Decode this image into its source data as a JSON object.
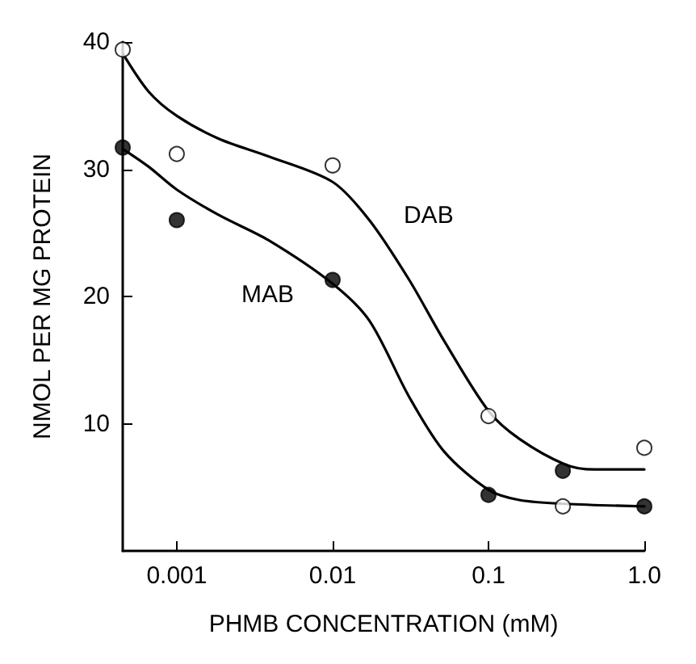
{
  "chart_data": {
    "type": "scatter",
    "xlabel": "PHMB CONCENTRATION (mM)",
    "ylabel": "NMOL PER MG PROTEIN",
    "log": "x",
    "grid": false,
    "marker": "circle",
    "xlim": [
      0.00045,
      1
    ],
    "xticks": [
      0.001,
      0.01,
      0.1,
      {
        "value": 1,
        "label": "1.0"
      }
    ],
    "ylim": [
      0,
      40
    ],
    "yticks": [
      10,
      20,
      30,
      40
    ],
    "series": [
      {
        "type": "line",
        "name": "DAB",
        "marker": "none",
        "color": "#000000",
        "x": [
          0.00045,
          0.00066,
          0.001,
          0.00186,
          0.0039,
          0.01,
          0.0172,
          0.031,
          0.052,
          0.1,
          0.158,
          0.31,
          0.48,
          1
        ],
        "values": [
          39.1,
          36.1,
          34.2,
          32.4,
          31.0,
          29.0,
          26.0,
          21.3,
          16.5,
          11.0,
          8.8,
          6.8,
          6.4,
          6.4
        ]
      },
      {
        "type": "line",
        "name": "MAB",
        "marker": "none",
        "color": "#000000",
        "x": [
          0.00045,
          0.00066,
          0.001,
          0.00186,
          0.0039,
          0.01,
          0.0172,
          0.031,
          0.052,
          0.1,
          0.158,
          0.31,
          1
        ],
        "values": [
          31.6,
          30.2,
          28.4,
          26.4,
          24.4,
          21.0,
          18.1,
          12.1,
          7.8,
          4.8,
          4.0,
          3.7,
          3.5
        ]
      },
      {
        "color": "#ffffff",
        "x": [
          0.00045,
          0.001,
          0.01,
          0.1,
          0.3,
          1
        ],
        "values": [
          39.4,
          31.2,
          30.3,
          10.6,
          3.5,
          8.1
        ]
      },
      {
        "color": "#000000",
        "x": [
          0.00045,
          0.001,
          0.01,
          0.1,
          0.3,
          1
        ],
        "values": [
          31.7,
          26.0,
          21.3,
          4.4,
          6.3,
          3.5
        ]
      }
    ]
  }
}
